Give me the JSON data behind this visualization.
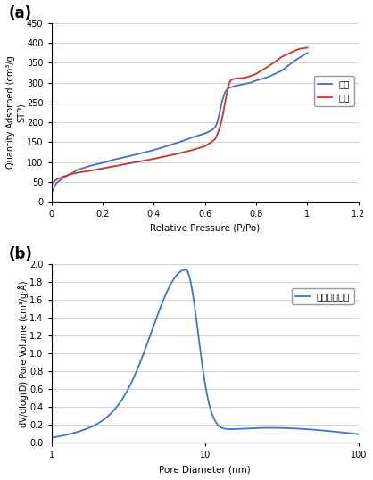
{
  "panel_a": {
    "title": "(a)",
    "xlabel": "Relative Pressure (P/Po)",
    "ylabel": "Quantity Adsorbed (cm³/g\nSTP)",
    "xlim": [
      0,
      1.2
    ],
    "ylim": [
      0,
      450
    ],
    "xticks": [
      0,
      0.2,
      0.4,
      0.6,
      0.8,
      1.0,
      1.2
    ],
    "yticks": [
      0,
      50,
      100,
      150,
      200,
      250,
      300,
      350,
      400,
      450
    ],
    "adsorption_color": "#4472C4",
    "desorption_color": "#C0392B",
    "legend_adsorption": "흥착",
    "legend_desorption": "탈착"
  },
  "panel_b": {
    "title": "(b)",
    "xlabel": "Pore Diameter (nm)",
    "ylabel": "dV/dlog(D) Pore Volume (cm³/g·Å)",
    "xlim_log": [
      1,
      100
    ],
    "ylim": [
      0,
      2
    ],
    "yticks": [
      0,
      0.2,
      0.4,
      0.6,
      0.8,
      1.0,
      1.2,
      1.4,
      1.6,
      1.8,
      2.0
    ],
    "pore_color": "#4472C4",
    "legend_label": "평균기공크기"
  }
}
